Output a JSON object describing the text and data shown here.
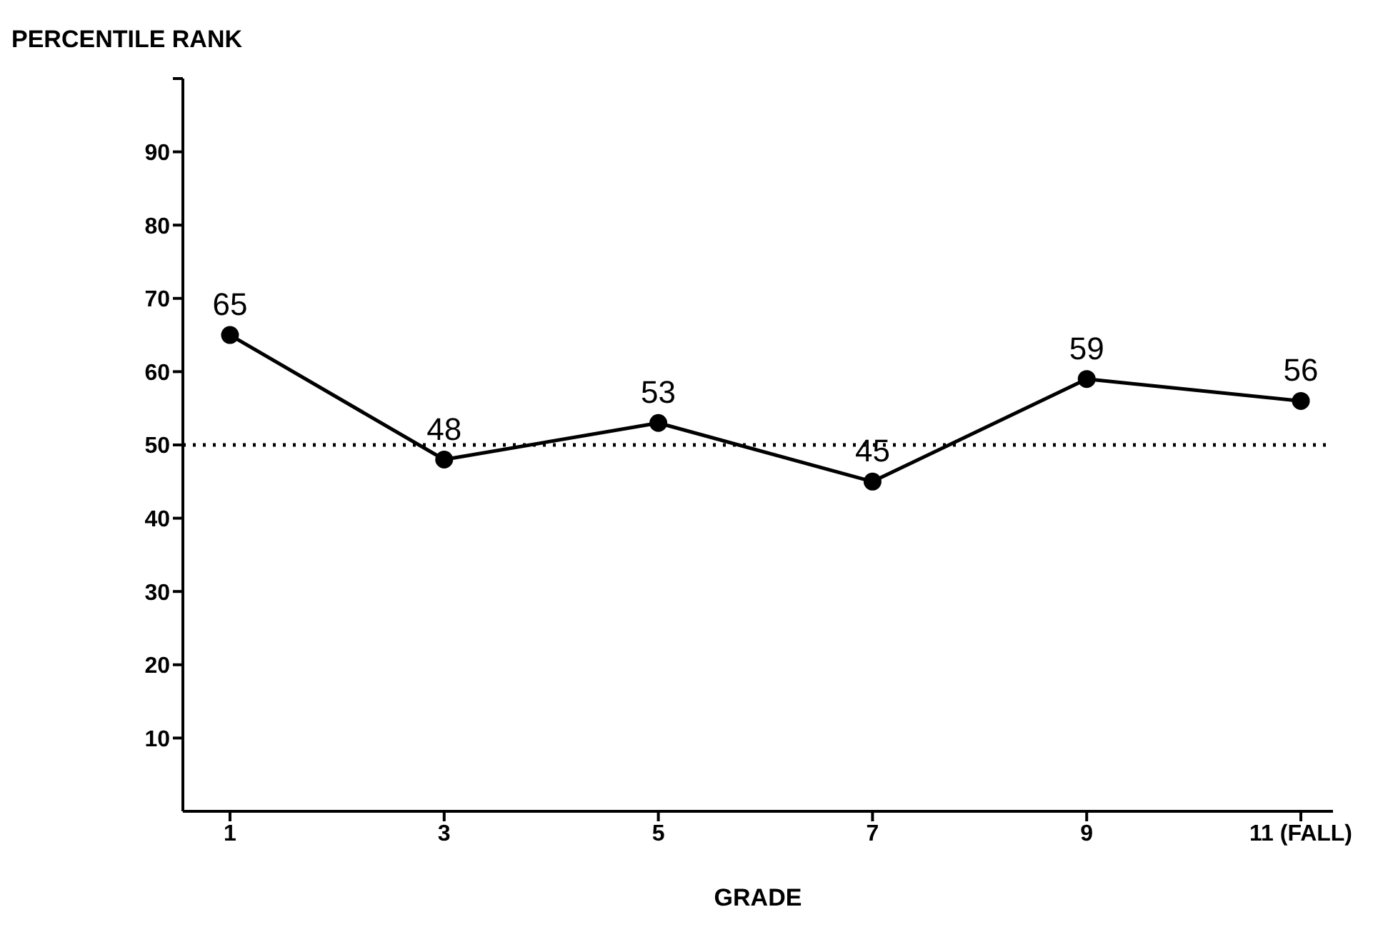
{
  "chart_data": {
    "type": "line",
    "ylabel": "PERCENTILE RANK",
    "xlabel": "GRADE",
    "categories": [
      "1",
      "3",
      "5",
      "7",
      "9",
      "11 (FALL)"
    ],
    "series": [
      {
        "color": "#000000",
        "values": [
          65,
          48,
          53,
          45,
          59,
          56
        ]
      }
    ],
    "ylim": [
      0,
      100
    ],
    "yticks": [
      10,
      20,
      30,
      40,
      50,
      60,
      70,
      80,
      90,
      {
        "value": 100,
        "label": null
      }
    ],
    "ref_lines": [
      {
        "axis": "y",
        "value": 50,
        "line_style": "dotted",
        "color": "#000000"
      }
    ],
    "data_labels": true,
    "marker": "circle",
    "line_style": "solid",
    "grid": false,
    "legend": false
  }
}
